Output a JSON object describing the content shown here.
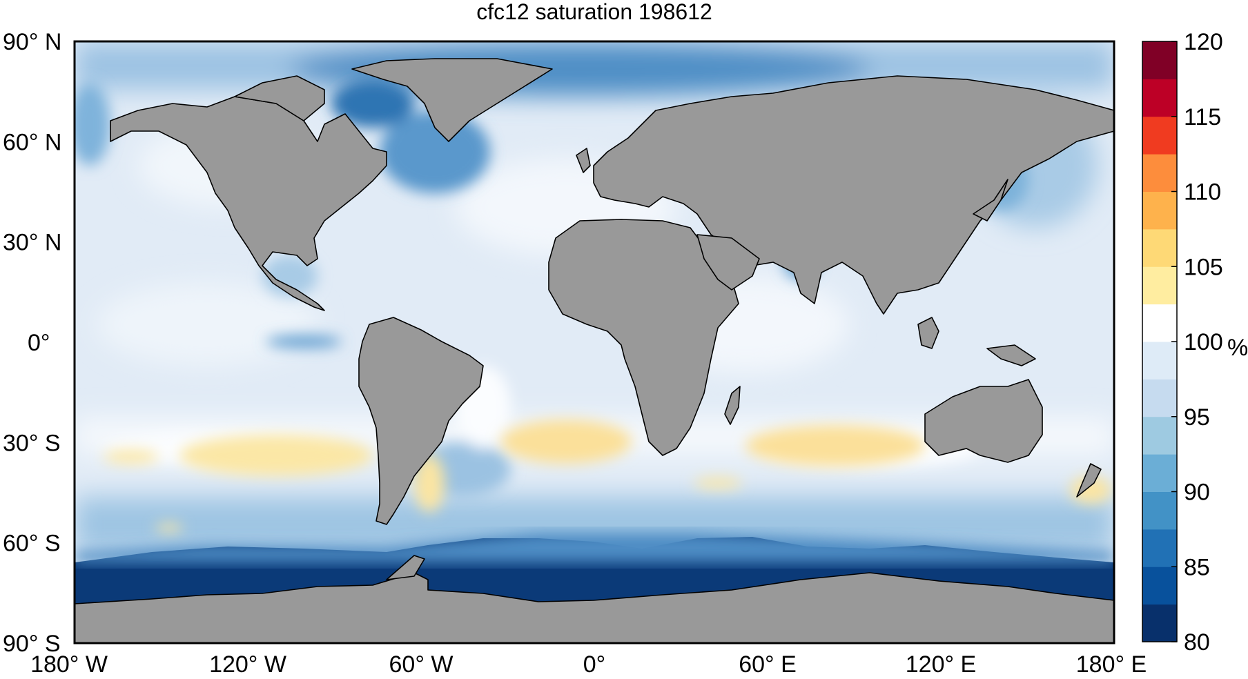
{
  "title": "cfc12 saturation 198612",
  "lat_ticks": [
    {
      "label": "90° N",
      "lat": 90
    },
    {
      "label": "60° N",
      "lat": 60
    },
    {
      "label": "30° N",
      "lat": 30
    },
    {
      "label": "0°",
      "lat": 0
    },
    {
      "label": "30° S",
      "lat": -30
    },
    {
      "label": "60° S",
      "lat": -60
    },
    {
      "label": "90° S",
      "lat": -90
    }
  ],
  "lon_ticks": [
    {
      "label": "180° W",
      "lon": -180
    },
    {
      "label": "120° W",
      "lon": -120
    },
    {
      "label": "60° W",
      "lon": -60
    },
    {
      "label": "0°",
      "lon": 0
    },
    {
      "label": "60° E",
      "lon": 60
    },
    {
      "label": "120° E",
      "lon": 120
    },
    {
      "label": "180° E",
      "lon": 180
    }
  ],
  "colorbar": {
    "unit": "%",
    "min": 80,
    "max": 120,
    "tick_labels": [
      "80",
      "85",
      "90",
      "95",
      "100",
      "105",
      "110",
      "115",
      "120"
    ],
    "colors": [
      "#08306b",
      "#08519c",
      "#2171b5",
      "#4292c6",
      "#6baed6",
      "#9ecae1",
      "#c6dbef",
      "#deebf7",
      "#ffffff",
      "#ffeda0",
      "#fed976",
      "#feb24c",
      "#fd8d3c",
      "#f03b20",
      "#bd0026",
      "#800026"
    ]
  },
  "colors": {
    "land": "#999999",
    "ocean_base": "#dfe9f5",
    "ice_free_gap": "#ffffff"
  }
}
